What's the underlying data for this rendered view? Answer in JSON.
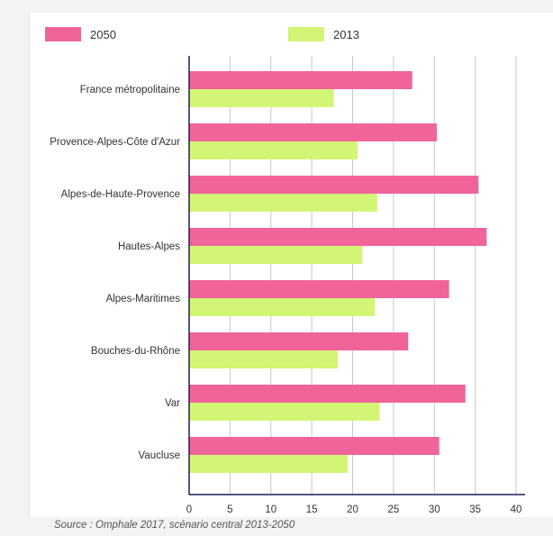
{
  "colors": {
    "series_2050": "#f0649a",
    "series_2013": "#d2f575",
    "grid": "#c7c7c7",
    "axis": "#1f1f5a"
  },
  "legend": [
    {
      "label": "2050",
      "color": "#f0649a"
    },
    {
      "label": "2013",
      "color": "#d2f575"
    }
  ],
  "source": "Source : Omphale 2017, scénario central 2013-2050",
  "chart_data": {
    "type": "bar",
    "orientation": "horizontal",
    "categories": [
      "France métropolitaine",
      "Provence-Alpes-Côte d'Azur",
      "Alpes-de-Haute-Provence",
      "Hautes-Alpes",
      "Alpes-Maritimes",
      "Bouches-du-Rhône",
      "Var",
      "Vaucluse"
    ],
    "series": [
      {
        "name": "2050",
        "values": [
          27.3,
          30.3,
          35.4,
          36.4,
          31.8,
          26.8,
          33.8,
          30.6
        ]
      },
      {
        "name": "2013",
        "values": [
          17.7,
          20.6,
          23.0,
          21.2,
          22.7,
          18.2,
          23.3,
          19.4
        ]
      }
    ],
    "xlim": [
      0,
      40
    ],
    "xticks": [
      "0",
      "5",
      "10",
      "15",
      "20",
      "25",
      "30",
      "35",
      "40"
    ],
    "grid": true,
    "legend_position": "top"
  }
}
